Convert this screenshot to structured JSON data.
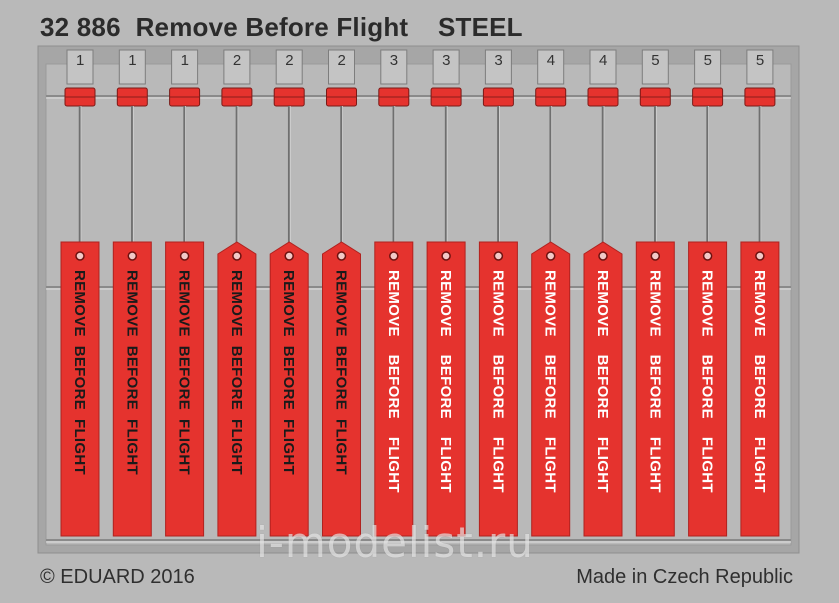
{
  "title": "32 886  Remove Before Flight    STEEL",
  "footer": {
    "copyright": "© EDUARD 2016",
    "origin": "Made in Czech Republic"
  },
  "watermark": "i-modelist.ru",
  "colors": {
    "background": "#b9b9b9",
    "fret": "#a6a6a6",
    "tag_red": "#e5332e",
    "text_dark": "#2b2b2b"
  },
  "tags": [
    {
      "number": "1",
      "text": "REMOVE  BEFORE  FLIGHT",
      "text_color": "#1a1a1a",
      "shape": "rect"
    },
    {
      "number": "1",
      "text": "REMOVE  BEFORE  FLIGHT",
      "text_color": "#1a1a1a",
      "shape": "rect"
    },
    {
      "number": "1",
      "text": "REMOVE  BEFORE  FLIGHT",
      "text_color": "#1a1a1a",
      "shape": "rect"
    },
    {
      "number": "2",
      "text": "REMOVE  BEFORE  FLIGHT",
      "text_color": "#1a1a1a",
      "shape": "point"
    },
    {
      "number": "2",
      "text": "REMOVE  BEFORE  FLIGHT",
      "text_color": "#1a1a1a",
      "shape": "point"
    },
    {
      "number": "2",
      "text": "REMOVE  BEFORE  FLIGHT",
      "text_color": "#1a1a1a",
      "shape": "point"
    },
    {
      "number": "3",
      "text": "REMOVE    BEFORE    FLIGHT",
      "text_color": "#ffffff",
      "shape": "rect"
    },
    {
      "number": "3",
      "text": "REMOVE    BEFORE    FLIGHT",
      "text_color": "#ffffff",
      "shape": "rect"
    },
    {
      "number": "3",
      "text": "REMOVE    BEFORE    FLIGHT",
      "text_color": "#ffffff",
      "shape": "rect"
    },
    {
      "number": "4",
      "text": "REMOVE    BEFORE    FLIGHT",
      "text_color": "#ffffff",
      "shape": "point"
    },
    {
      "number": "4",
      "text": "REMOVE    BEFORE    FLIGHT",
      "text_color": "#ffffff",
      "shape": "point"
    },
    {
      "number": "5",
      "text": "REMOVE    BEFORE    FLIGHT",
      "text_color": "#ffffff",
      "shape": "rect"
    },
    {
      "number": "5",
      "text": "REMOVE    BEFORE    FLIGHT",
      "text_color": "#ffffff",
      "shape": "rect"
    },
    {
      "number": "5",
      "text": "REMOVE    BEFORE    FLIGHT",
      "text_color": "#ffffff",
      "shape": "rect"
    }
  ]
}
